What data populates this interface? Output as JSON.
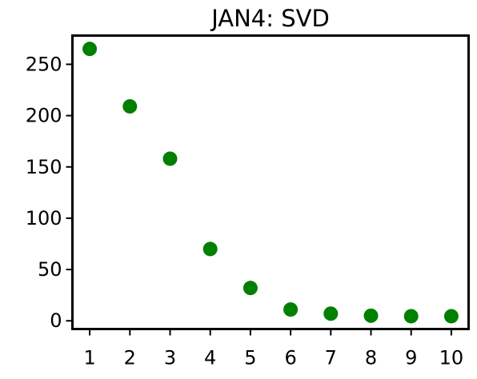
{
  "chart_data": {
    "type": "scatter",
    "title": "JAN4: SVD",
    "xlabel": "",
    "ylabel": "",
    "x": [
      1,
      2,
      3,
      4,
      5,
      6,
      7,
      8,
      9,
      10
    ],
    "y": [
      265,
      209,
      158,
      70,
      32,
      11,
      7,
      5,
      4.5,
      4.5
    ],
    "xticks": [
      "1",
      "2",
      "3",
      "4",
      "5",
      "6",
      "7",
      "8",
      "9",
      "10"
    ],
    "yticks": [
      "0",
      "50",
      "100",
      "150",
      "200",
      "250"
    ],
    "xlim": [
      0.57,
      10.43
    ],
    "ylim": [
      -8,
      278
    ],
    "marker_color": "#008000",
    "grid": false,
    "legend": "none"
  }
}
